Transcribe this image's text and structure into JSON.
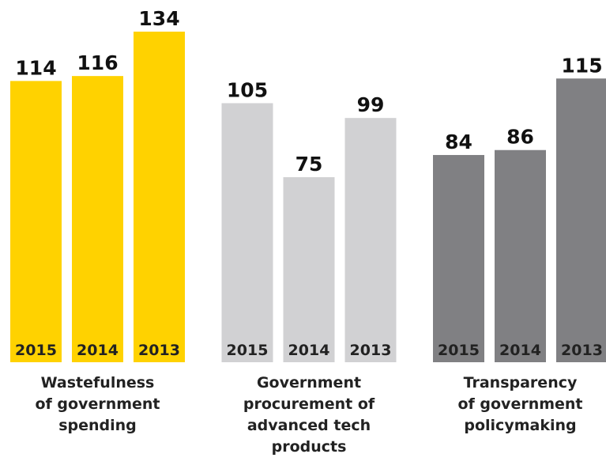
{
  "chart_data": {
    "type": "bar",
    "groups": [
      {
        "label": [
          "Wastefulness",
          "of government",
          "spending"
        ],
        "color": "#FFD200",
        "categories": [
          "2015",
          "2014",
          "2013"
        ],
        "values": [
          114,
          116,
          134
        ]
      },
      {
        "label": [
          "Government",
          "procurement of",
          "advanced tech",
          "products"
        ],
        "color": "#D1D1D3",
        "categories": [
          "2015",
          "2014",
          "2013"
        ],
        "values": [
          105,
          75,
          99
        ]
      },
      {
        "label": [
          "Transparency",
          "of government",
          "policymaking"
        ],
        "color": "#808083",
        "categories": [
          "2015",
          "2014",
          "2013"
        ],
        "values": [
          84,
          86,
          115
        ]
      }
    ]
  }
}
